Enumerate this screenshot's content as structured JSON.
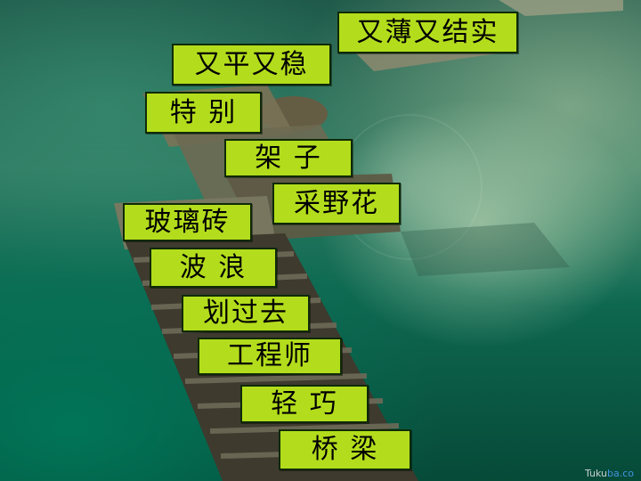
{
  "cards": [
    {
      "id": "card-1",
      "text": "又薄又结实"
    },
    {
      "id": "card-2",
      "text": "又平又稳"
    },
    {
      "id": "card-3",
      "text": "特 别"
    },
    {
      "id": "card-4",
      "text": "架 子"
    },
    {
      "id": "card-5",
      "text": "采野花"
    },
    {
      "id": "card-6",
      "text": "玻璃砖"
    },
    {
      "id": "card-7",
      "text": "波 浪"
    },
    {
      "id": "card-8",
      "text": "划过去"
    },
    {
      "id": "card-9",
      "text": "工程师"
    },
    {
      "id": "card-10",
      "text": "轻 巧"
    },
    {
      "id": "card-11",
      "text": "桥 梁"
    }
  ],
  "watermark": {
    "prefix": "Tuku",
    "accent": "ba.co"
  },
  "colors": {
    "card_fill": "#b3dd1c",
    "card_border": "#0f2a08"
  }
}
